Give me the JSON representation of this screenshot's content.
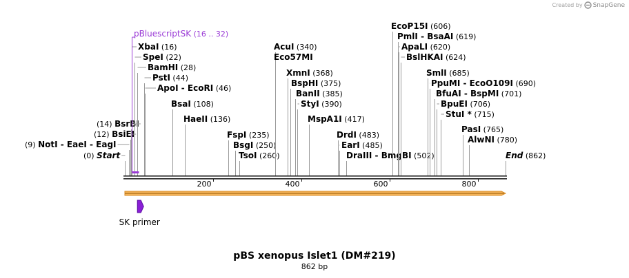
{
  "credit": {
    "prefix": "Created by",
    "brand": "SnapGene"
  },
  "map": {
    "name": "pBS xenopus Islet1 (DM#219)",
    "length_label": "862 bp",
    "length": 862,
    "ticks": [
      {
        "pos": 200,
        "label": "200"
      },
      {
        "pos": 400,
        "label": "400"
      },
      {
        "pos": 600,
        "label": "600"
      },
      {
        "pos": 800,
        "label": "800"
      }
    ],
    "site_groups": [
      {
        "pos": 0,
        "coord": "(0)",
        "names": [
          "Start"
        ],
        "italic": true,
        "side": "left"
      },
      {
        "pos": 9,
        "coord": "(9)",
        "names": [
          "NotI",
          "EaeI",
          "EagI"
        ],
        "side": "left"
      },
      {
        "pos": 12,
        "coord": "(12)",
        "names": [
          "BsiEI"
        ],
        "side": "left"
      },
      {
        "pos": 14,
        "coord": "(14)",
        "names": [
          "BsrBI"
        ],
        "side": "left"
      },
      {
        "pos": 16,
        "coord": "(16)",
        "names": [
          "XbaI"
        ]
      },
      {
        "pos": 22,
        "coord": "(22)",
        "names": [
          "SpeI"
        ]
      },
      {
        "pos": 28,
        "coord": "(28)",
        "names": [
          "BamHI"
        ]
      },
      {
        "pos": 44,
        "coord": "(44)",
        "names": [
          "PstI"
        ]
      },
      {
        "pos": 46,
        "coord": "(46)",
        "names": [
          "ApoI",
          "EcoRI"
        ]
      },
      {
        "pos": 108,
        "coord": "(108)",
        "names": [
          "BsaI"
        ]
      },
      {
        "pos": 136,
        "coord": "(136)",
        "names": [
          "HaeII"
        ]
      },
      {
        "pos": 235,
        "coord": "(235)",
        "names": [
          "FspI"
        ]
      },
      {
        "pos": 250,
        "coord": "(250)",
        "names": [
          "BsgI"
        ]
      },
      {
        "pos": 260,
        "coord": "(260)",
        "names": [
          "TsoI"
        ]
      },
      {
        "pos": 340,
        "coord": "(340)",
        "names": [
          "AcuI"
        ]
      },
      {
        "pos": 340,
        "coord": "",
        "names": [
          "Eco57MI"
        ]
      },
      {
        "pos": 368,
        "coord": "(368)",
        "names": [
          "XmnI"
        ]
      },
      {
        "pos": 375,
        "coord": "(375)",
        "names": [
          "BspHI"
        ]
      },
      {
        "pos": 385,
        "coord": "(385)",
        "names": [
          "BanII"
        ]
      },
      {
        "pos": 390,
        "coord": "(390)",
        "names": [
          "StyI"
        ]
      },
      {
        "pos": 417,
        "coord": "(417)",
        "names": [
          "MspA1I"
        ]
      },
      {
        "pos": 483,
        "coord": "(483)",
        "names": [
          "DrdI"
        ]
      },
      {
        "pos": 485,
        "coord": "(485)",
        "names": [
          "EarI"
        ]
      },
      {
        "pos": 502,
        "coord": "(502)",
        "names": [
          "DraIII",
          "BmgBI"
        ]
      },
      {
        "pos": 606,
        "coord": "(606)",
        "names": [
          "EcoP15I"
        ]
      },
      {
        "pos": 619,
        "coord": "(619)",
        "names": [
          "PmlI",
          "BsaAI"
        ]
      },
      {
        "pos": 620,
        "coord": "(620)",
        "names": [
          "ApaLI"
        ]
      },
      {
        "pos": 624,
        "coord": "(624)",
        "names": [
          "BslHKAI"
        ]
      },
      {
        "pos": 685,
        "coord": "(685)",
        "names": [
          "SmlI"
        ]
      },
      {
        "pos": 690,
        "coord": "(690)",
        "names": [
          "PpuMI",
          "EcoO109I"
        ]
      },
      {
        "pos": 701,
        "coord": "(701)",
        "names": [
          "BfuAI",
          "BspMI"
        ]
      },
      {
        "pos": 706,
        "coord": "(706)",
        "names": [
          "BpuEI"
        ]
      },
      {
        "pos": 715,
        "coord": "(715)",
        "names": [
          "StuI *"
        ]
      },
      {
        "pos": 765,
        "coord": "(765)",
        "names": [
          "PasI"
        ]
      },
      {
        "pos": 780,
        "coord": "(780)",
        "names": [
          "AlwNI"
        ]
      },
      {
        "pos": 862,
        "coord": "(862)",
        "names": [
          "End"
        ],
        "italic": true
      }
    ],
    "features": [
      {
        "name": "pBluescriptSK",
        "range": "(16 .. 32)",
        "start": 16,
        "end": 32,
        "color": "#9a3ad6",
        "type": "primer_bind"
      },
      {
        "name": "SK primer",
        "start": 16,
        "end": 32,
        "color": "#8a1fd6",
        "type": "primer"
      }
    ],
    "orf": {
      "start": 0,
      "end": 862,
      "color": "#f6b55b",
      "outline": "#d88a22"
    }
  }
}
